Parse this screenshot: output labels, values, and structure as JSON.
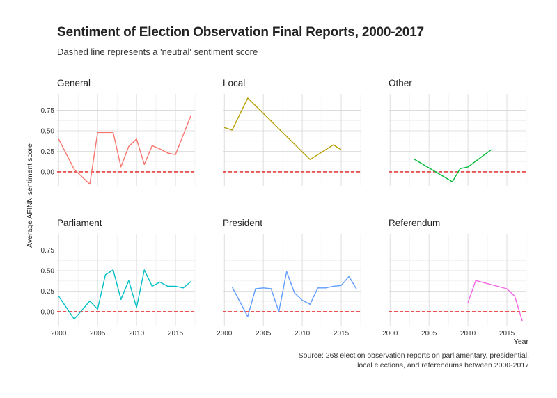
{
  "title": "Sentiment of Election Observation Final Reports, 2000-2017",
  "subtitle": "Dashed line represents a 'neutral' sentiment score",
  "caption_line1": "Source: 268 election observation reports on parliamentary, presidential,",
  "caption_line2": "local elections, and referendums between 2000-2017",
  "ylabel": "Average AFINN sentiment score",
  "xlabel": "Year",
  "chart_data": {
    "type": "line",
    "facets": true,
    "xlim": [
      1999.8,
      2017.5
    ],
    "ylim": [
      -0.17,
      0.95
    ],
    "x_ticks": [
      2000,
      2005,
      2010,
      2015
    ],
    "y_ticks": [
      0.0,
      0.25,
      0.5,
      0.75
    ],
    "y_tick_labels": [
      "0.00",
      "0.25",
      "0.50",
      "0.75"
    ],
    "reference_line": 0,
    "reference_color": "#e41a1c",
    "grid": true,
    "legend": "none",
    "series": [
      {
        "name": "General",
        "color": "#F8766D",
        "x": [
          2000,
          2002,
          2004,
          2005,
          2007,
          2008,
          2009,
          2010,
          2011,
          2012,
          2013,
          2014,
          2015,
          2017
        ],
        "y": [
          0.4,
          0.03,
          -0.15,
          0.48,
          0.48,
          0.06,
          0.31,
          0.4,
          0.09,
          0.32,
          0.28,
          0.23,
          0.21,
          0.69
        ]
      },
      {
        "name": "Local",
        "color": "#B79F00",
        "x": [
          2000,
          2001,
          2003,
          2011,
          2014,
          2015
        ],
        "y": [
          0.54,
          0.51,
          0.9,
          0.15,
          0.33,
          0.27
        ]
      },
      {
        "name": "Other",
        "color": "#00BA38",
        "x": [
          2003,
          2008,
          2009,
          2010,
          2013
        ],
        "y": [
          0.16,
          -0.12,
          0.04,
          0.06,
          0.27
        ]
      },
      {
        "name": "Parliament",
        "color": "#00BFC4",
        "x": [
          2000,
          2002,
          2004,
          2005,
          2006,
          2007,
          2008,
          2009,
          2010,
          2011,
          2012,
          2013,
          2014,
          2015,
          2016,
          2017
        ],
        "y": [
          0.19,
          -0.09,
          0.13,
          0.03,
          0.45,
          0.51,
          0.15,
          0.38,
          0.05,
          0.51,
          0.31,
          0.36,
          0.31,
          0.31,
          0.29,
          0.37
        ]
      },
      {
        "name": "President",
        "color": "#619CFF",
        "x": [
          2001,
          2003,
          2004,
          2005,
          2006,
          2007,
          2008,
          2009,
          2010,
          2011,
          2012,
          2013,
          2014,
          2015,
          2016,
          2017
        ],
        "y": [
          0.3,
          -0.06,
          0.28,
          0.29,
          0.28,
          0.0,
          0.49,
          0.23,
          0.14,
          0.09,
          0.29,
          0.29,
          0.31,
          0.32,
          0.43,
          0.27
        ]
      },
      {
        "name": "Referendum",
        "color": "#F564E3",
        "x": [
          2010,
          2011,
          2015,
          2016,
          2017
        ],
        "y": [
          0.11,
          0.38,
          0.28,
          0.19,
          -0.12
        ]
      }
    ]
  }
}
